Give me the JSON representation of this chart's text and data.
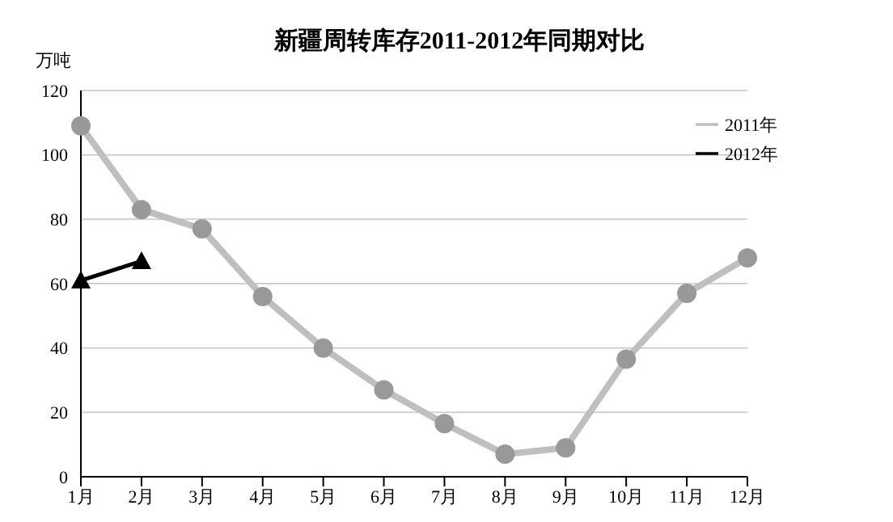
{
  "chart_data": {
    "type": "line",
    "title": "新疆周转库存2011-2012年同期对比",
    "ylabel": "万吨",
    "categories": [
      "1月",
      "2月",
      "3月",
      "4月",
      "5月",
      "6月",
      "7月",
      "8月",
      "9月",
      "10月",
      "11月",
      "12月"
    ],
    "series": [
      {
        "name": "2011年",
        "color": "#bfbfbf",
        "marker": "circle",
        "values": [
          109,
          83,
          77,
          56,
          40,
          27,
          16.5,
          7,
          9,
          36.5,
          57,
          68
        ]
      },
      {
        "name": "2012年",
        "color": "#000000",
        "marker": "triangle",
        "values": [
          61,
          67,
          null,
          null,
          null,
          null,
          null,
          null,
          null,
          null,
          null,
          null
        ]
      }
    ],
    "ylim": [
      0,
      120
    ],
    "yticks": [
      0,
      20,
      40,
      60,
      80,
      100,
      120
    ],
    "grid": "y",
    "legend": "top right"
  }
}
